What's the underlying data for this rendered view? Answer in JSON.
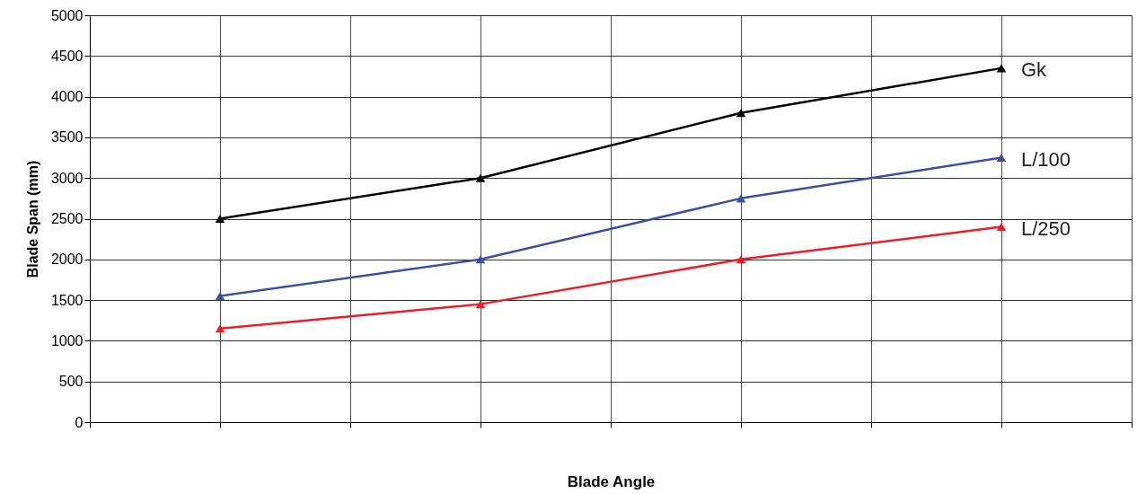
{
  "chart_data": {
    "type": "line",
    "xlabel": "Blade Angle",
    "ylabel": "Blade Span (mm)",
    "categories": [
      null,
      null,
      null,
      null
    ],
    "series": [
      {
        "name": "Gk",
        "color": "#000000",
        "values": [
          2500,
          3000,
          3800,
          4350
        ]
      },
      {
        "name": "L/100",
        "color": "#3a51a3",
        "values": [
          1550,
          2000,
          2750,
          3250
        ]
      },
      {
        "name": "L/250",
        "color": "#ee1c25",
        "values": [
          1150,
          1450,
          2000,
          2400
        ]
      }
    ],
    "ylim": [
      0,
      5000
    ],
    "yticks": [
      0,
      500,
      1000,
      1500,
      2000,
      2500,
      3000,
      3500,
      4000,
      4500,
      5000
    ],
    "grid": true,
    "marker": "triangle",
    "line_style": "solid",
    "tick_labels": "y"
  }
}
